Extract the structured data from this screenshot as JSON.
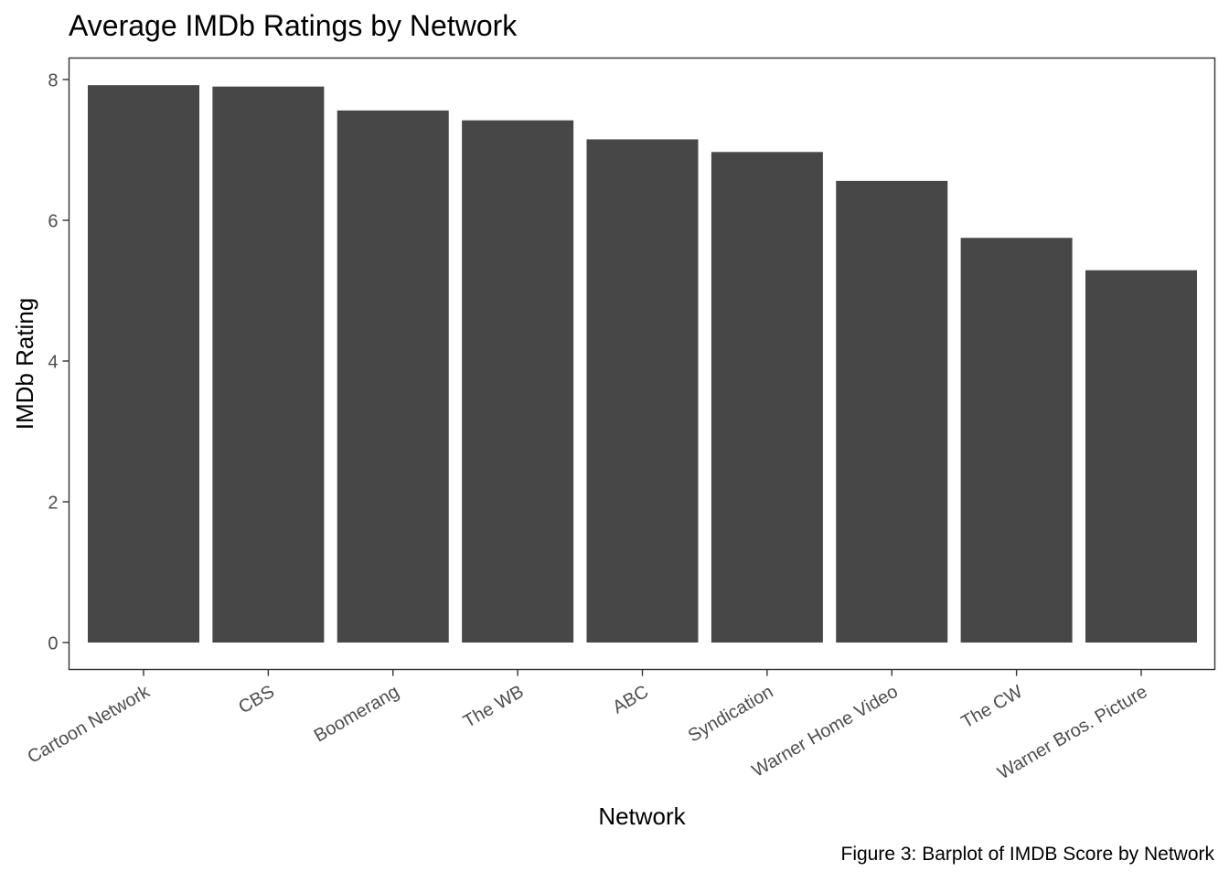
{
  "chart_data": {
    "type": "bar",
    "title": "Average IMDb Ratings by Network",
    "xlabel": "Network",
    "ylabel": "IMDb Rating",
    "caption": "Figure 3: Barplot of IMDB Score by Network",
    "categories": [
      "Cartoon Network",
      "CBS",
      "Boomerang",
      "The WB",
      "ABC",
      "Syndication",
      "Warner Home Video",
      "The CW",
      "Warner Bros. Picture"
    ],
    "values": [
      7.92,
      7.9,
      7.56,
      7.42,
      7.15,
      6.97,
      6.56,
      5.75,
      5.29
    ],
    "yticks": [
      "0",
      "2",
      "4",
      "6",
      "8"
    ],
    "ylim": [
      -0.4,
      8.3
    ],
    "grid": false,
    "bar_color": "#474747",
    "panel_border_color": "#333333",
    "tick_color": "#333333",
    "tick_label_color": "#4d4d4d",
    "text_color": "#000000"
  }
}
